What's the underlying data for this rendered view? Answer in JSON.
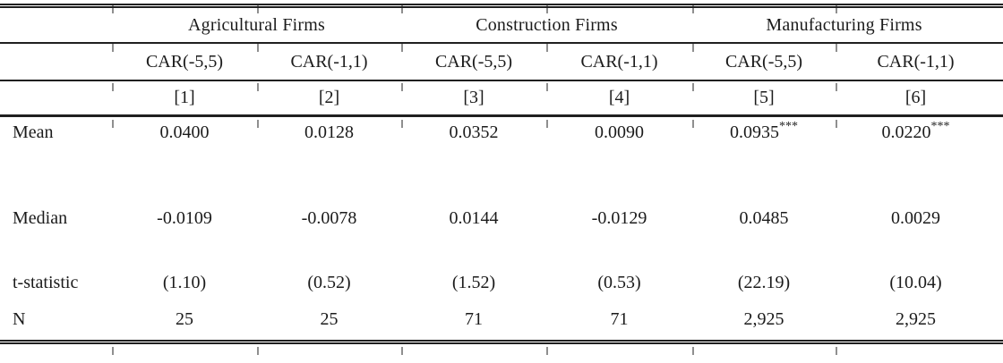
{
  "table": {
    "groups": [
      {
        "label": "Agricultural Firms"
      },
      {
        "label": "Construction Firms"
      },
      {
        "label": "Manufacturing Firms"
      }
    ],
    "columns": [
      {
        "header": "CAR(-5,5)",
        "number": "[1]"
      },
      {
        "header": "CAR(-1,1)",
        "number": "[2]"
      },
      {
        "header": "CAR(-5,5)",
        "number": "[3]"
      },
      {
        "header": "CAR(-1,1)",
        "number": "[4]"
      },
      {
        "header": "CAR(-5,5)",
        "number": "[5]"
      },
      {
        "header": "CAR(-1,1)",
        "number": "[6]"
      }
    ],
    "rows": [
      {
        "label": "Mean",
        "cells": [
          {
            "v": "0.0400",
            "sup": ""
          },
          {
            "v": "0.0128",
            "sup": ""
          },
          {
            "v": "0.0352",
            "sup": ""
          },
          {
            "v": "0.0090",
            "sup": ""
          },
          {
            "v": "0.0935",
            "sup": "***"
          },
          {
            "v": "0.0220",
            "sup": "***"
          }
        ]
      },
      {
        "label": "Median",
        "cells": [
          {
            "v": "-0.0109",
            "sup": ""
          },
          {
            "v": "-0.0078",
            "sup": ""
          },
          {
            "v": "0.0144",
            "sup": ""
          },
          {
            "v": "-0.0129",
            "sup": ""
          },
          {
            "v": "0.0485",
            "sup": ""
          },
          {
            "v": "0.0029",
            "sup": ""
          }
        ]
      },
      {
        "label": "t-statistic",
        "cells": [
          {
            "v": "(1.10)",
            "sup": ""
          },
          {
            "v": "(0.52)",
            "sup": ""
          },
          {
            "v": "(1.52)",
            "sup": ""
          },
          {
            "v": "(0.53)",
            "sup": ""
          },
          {
            "v": "(22.19)",
            "sup": ""
          },
          {
            "v": "(10.04)",
            "sup": ""
          }
        ]
      },
      {
        "label": "N",
        "cells": [
          {
            "v": "25",
            "sup": ""
          },
          {
            "v": "25",
            "sup": ""
          },
          {
            "v": "71",
            "sup": ""
          },
          {
            "v": "71",
            "sup": ""
          },
          {
            "v": "2,925",
            "sup": ""
          },
          {
            "v": "2,925",
            "sup": ""
          }
        ]
      }
    ],
    "colors": {
      "rule": "#1f1f1f",
      "text": "#1b1b1b",
      "tick": "#8f8f8f"
    }
  }
}
